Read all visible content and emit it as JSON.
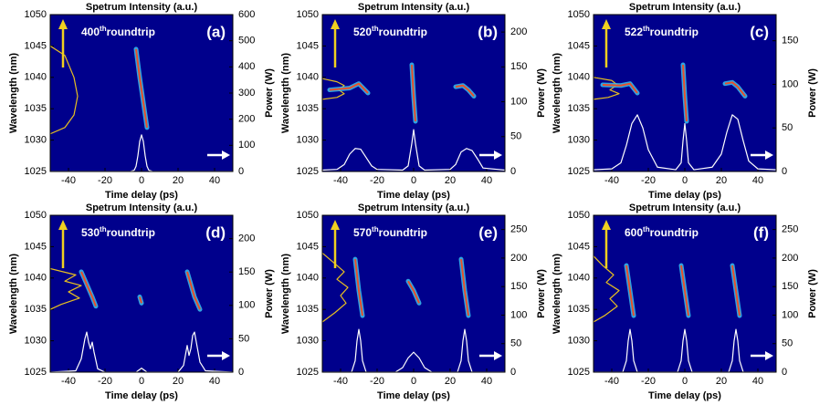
{
  "chart_data": [
    {
      "type": "line",
      "title": "Spetrum Intensity (a.u.)",
      "x_label": "Time delay (ps)",
      "y_label": "Wavelength (nm)",
      "y2_label": "Power (W)",
      "panel_label": "(a)",
      "roundtrip_number": "400",
      "roundtrip_suffix": "th",
      "roundtrip_word": "roundtrip",
      "background": "#00008c",
      "glow": "#38c0f0",
      "xlim": [
        -50,
        50
      ],
      "xticks": [
        -40,
        -20,
        0,
        20,
        40
      ],
      "ylim": [
        1025,
        1050
      ],
      "yticks": [
        1025,
        1030,
        1035,
        1040,
        1045,
        1050
      ],
      "y2lim": [
        0,
        600
      ],
      "y2ticks": [
        0,
        100,
        200,
        300,
        400,
        500,
        600
      ],
      "series": [
        {
          "color": "#ffffff",
          "axis": "y2",
          "x": [
            -50,
            -6,
            -4,
            -3,
            -2,
            -1,
            0,
            1,
            2,
            3,
            4,
            6,
            50
          ],
          "values": [
            0,
            0,
            5,
            20,
            60,
            115,
            140,
            115,
            60,
            20,
            5,
            0,
            0
          ]
        },
        {
          "color": "#e8c020",
          "x": [
            -50,
            -42,
            -37,
            -35,
            -37,
            -42,
            -50
          ],
          "values": [
            1045,
            1043.5,
            1040,
            1037,
            1034,
            1032,
            1031
          ]
        },
        {
          "color": "#e8502a",
          "glow": true,
          "x": [
            -3,
            -1,
            1,
            3
          ],
          "values": [
            1044.5,
            1040,
            1036,
            1032
          ]
        }
      ]
    },
    {
      "type": "line",
      "title": "Spetrum Intensity (a.u.)",
      "x_label": "Time delay (ps)",
      "y_label": "Wavelength (nm)",
      "y2_label": "Power (W)",
      "panel_label": "(b)",
      "roundtrip_number": "520",
      "roundtrip_suffix": "th",
      "roundtrip_word": "roundtrip",
      "background": "#00008c",
      "glow": "#38c0f0",
      "xlim": [
        -50,
        50
      ],
      "xticks": [
        -40,
        -20,
        0,
        20,
        40
      ],
      "ylim": [
        1025,
        1050
      ],
      "yticks": [
        1025,
        1030,
        1035,
        1040,
        1045,
        1050
      ],
      "y2lim": [
        0,
        225
      ],
      "y2ticks": [
        0,
        50,
        100,
        150,
        200
      ],
      "series": [
        {
          "color": "#ffffff",
          "axis": "y2",
          "x": [
            -50,
            -42,
            -38,
            -35,
            -32,
            -29,
            -26,
            -23,
            -20,
            -6,
            -3,
            -1,
            0,
            1,
            3,
            6,
            20,
            23,
            26,
            29,
            32,
            35,
            38,
            50
          ],
          "values": [
            2,
            3,
            10,
            25,
            33,
            32,
            20,
            8,
            3,
            2,
            8,
            40,
            60,
            40,
            8,
            2,
            3,
            10,
            28,
            33,
            30,
            18,
            5,
            2
          ]
        },
        {
          "color": "#e8c020",
          "x": [
            -50,
            -42,
            -38,
            -41,
            -38,
            -42,
            -50
          ],
          "values": [
            1039.8,
            1039.3,
            1038.7,
            1038,
            1037.4,
            1036.8,
            1036.5
          ]
        },
        {
          "color": "#e8502a",
          "glow": true,
          "x": [
            -46,
            -35,
            -30,
            -25
          ],
          "values": [
            1038,
            1038.3,
            1039,
            1037.5
          ]
        },
        {
          "color": "#e8502a",
          "glow": true,
          "x": [
            -1,
            0,
            1
          ],
          "values": [
            1042,
            1037,
            1033
          ]
        },
        {
          "color": "#e8502a",
          "glow": true,
          "x": [
            23,
            27,
            30,
            33
          ],
          "values": [
            1038.5,
            1038.7,
            1038,
            1037
          ]
        }
      ]
    },
    {
      "type": "line",
      "title": "Spetrum Intensity (a.u.)",
      "x_label": "Time delay (ps)",
      "y_label": "Wavelength (nm)",
      "y2_label": "Power (W)",
      "panel_label": "(c)",
      "roundtrip_number": "522",
      "roundtrip_suffix": "th",
      "roundtrip_word": "roundtrip",
      "background": "#00008c",
      "glow": "#38c0f0",
      "xlim": [
        -50,
        50
      ],
      "xticks": [
        -40,
        -20,
        0,
        20,
        40
      ],
      "ylim": [
        1025,
        1050
      ],
      "yticks": [
        1025,
        1030,
        1035,
        1040,
        1045,
        1050
      ],
      "y2lim": [
        0,
        180
      ],
      "y2ticks": [
        0,
        50,
        100,
        150
      ],
      "series": [
        {
          "color": "#ffffff",
          "axis": "y2",
          "x": [
            -50,
            -40,
            -35,
            -32,
            -29,
            -26,
            -23,
            -20,
            -15,
            -5,
            -2,
            -1,
            0,
            1,
            2,
            5,
            15,
            20,
            23,
            26,
            29,
            32,
            35,
            40,
            50
          ],
          "values": [
            2,
            3,
            10,
            30,
            55,
            65,
            50,
            25,
            5,
            2,
            10,
            35,
            55,
            35,
            10,
            2,
            5,
            20,
            45,
            65,
            60,
            35,
            12,
            3,
            2
          ]
        },
        {
          "color": "#e8c020",
          "x": [
            -50,
            -40,
            -37,
            -41,
            -36,
            -42,
            -50
          ],
          "values": [
            1040,
            1039.5,
            1038.8,
            1038,
            1037.4,
            1036.8,
            1036.5
          ]
        },
        {
          "color": "#e8502a",
          "glow": true,
          "x": [
            -45,
            -35,
            -30,
            -26
          ],
          "values": [
            1038.8,
            1038.7,
            1039,
            1037.5
          ]
        },
        {
          "color": "#e8502a",
          "glow": true,
          "x": [
            -1,
            0,
            1
          ],
          "values": [
            1042,
            1037,
            1033
          ]
        },
        {
          "color": "#e8502a",
          "glow": true,
          "x": [
            22,
            26,
            29,
            33
          ],
          "values": [
            1039,
            1039.2,
            1038.5,
            1037
          ]
        }
      ]
    },
    {
      "type": "line",
      "title": "Spetrum Intensity (a.u.)",
      "x_label": "Time delay (ps)",
      "y_label": "Wavelength (nm)",
      "y2_label": "Power (W)",
      "panel_label": "(d)",
      "roundtrip_number": "530",
      "roundtrip_suffix": "th",
      "roundtrip_word": "roundtrip",
      "background": "#00008c",
      "glow": "#38c0f0",
      "xlim": [
        -50,
        50
      ],
      "xticks": [
        -40,
        -20,
        0,
        20,
        40
      ],
      "ylim": [
        1025,
        1050
      ],
      "yticks": [
        1025,
        1030,
        1035,
        1040,
        1045,
        1050
      ],
      "y2lim": [
        0,
        235
      ],
      "y2ticks": [
        0,
        50,
        100,
        150,
        200
      ],
      "series": [
        {
          "color": "#ffffff",
          "axis": "y2",
          "x": [
            -50,
            -36,
            -33,
            -31,
            -30,
            -29,
            -28,
            -27,
            -26,
            -24,
            -20,
            -3,
            0,
            3,
            20,
            23,
            25,
            26,
            27,
            28,
            29,
            30,
            32,
            35,
            50
          ],
          "values": [
            0,
            2,
            20,
            50,
            60,
            45,
            35,
            45,
            30,
            5,
            0,
            0,
            6,
            0,
            0,
            10,
            40,
            25,
            35,
            55,
            60,
            45,
            15,
            2,
            0
          ]
        },
        {
          "color": "#e8c020",
          "x": [
            -50,
            -36,
            -42,
            -33,
            -40,
            -34,
            -44,
            -50
          ],
          "values": [
            1041.5,
            1040.5,
            1039.5,
            1038.8,
            1037.8,
            1036.8,
            1035.8,
            1035
          ]
        },
        {
          "color": "#e8502a",
          "glow": true,
          "x": [
            -33,
            -30,
            -27,
            -25
          ],
          "values": [
            1041,
            1039,
            1037,
            1035.5
          ]
        },
        {
          "color": "#e8502a",
          "glow": true,
          "x": [
            -1,
            0
          ],
          "values": [
            1037,
            1036
          ]
        },
        {
          "color": "#e8502a",
          "glow": true,
          "x": [
            25,
            27,
            29,
            32
          ],
          "values": [
            1041,
            1039,
            1037,
            1035
          ]
        }
      ]
    },
    {
      "type": "line",
      "title": "Spetrum Intensity (a.u.)",
      "x_label": "Time delay (ps)",
      "y_label": "Wavelength (nm)",
      "y2_label": "Power (W)",
      "panel_label": "(e)",
      "roundtrip_number": "570",
      "roundtrip_suffix": "th",
      "roundtrip_word": "roundtrip",
      "background": "#00008c",
      "glow": "#38c0f0",
      "xlim": [
        -50,
        50
      ],
      "xticks": [
        -40,
        -20,
        0,
        20,
        40
      ],
      "ylim": [
        1025,
        1050
      ],
      "yticks": [
        1025,
        1030,
        1035,
        1040,
        1045,
        1050
      ],
      "y2lim": [
        0,
        275
      ],
      "y2ticks": [
        0,
        50,
        100,
        150,
        200,
        250
      ],
      "series": [
        {
          "color": "#ffffff",
          "axis": "y2",
          "x": [
            -50,
            -34,
            -32,
            -31,
            -30,
            -29,
            -28,
            -26,
            -10,
            -6,
            -3,
            0,
            3,
            6,
            10,
            24,
            26,
            27,
            28,
            29,
            30,
            32,
            50
          ],
          "values": [
            0,
            0,
            20,
            55,
            75,
            55,
            20,
            0,
            0,
            8,
            25,
            35,
            25,
            8,
            0,
            0,
            20,
            55,
            75,
            55,
            20,
            0,
            0
          ]
        },
        {
          "color": "#e8c020",
          "x": [
            -50,
            -44,
            -38,
            -42,
            -36,
            -40,
            -37,
            -43,
            -50
          ],
          "values": [
            1044,
            1042.5,
            1041,
            1039.8,
            1038.5,
            1037.2,
            1036,
            1034.5,
            1033
          ]
        },
        {
          "color": "#e8502a",
          "glow": true,
          "x": [
            -32,
            -30,
            -28
          ],
          "values": [
            1043,
            1038,
            1034
          ]
        },
        {
          "color": "#e8502a",
          "glow": true,
          "x": [
            -3,
            0,
            3
          ],
          "values": [
            1039.5,
            1038,
            1036
          ]
        },
        {
          "color": "#e8502a",
          "glow": true,
          "x": [
            26,
            28,
            30
          ],
          "values": [
            1043,
            1038,
            1034
          ]
        }
      ]
    },
    {
      "type": "line",
      "title": "Spetrum Intensity (a.u.)",
      "x_label": "Time delay (ps)",
      "y_label": "Wavelength (nm)",
      "y2_label": "Power (W)",
      "panel_label": "(f)",
      "roundtrip_number": "600",
      "roundtrip_suffix": "th",
      "roundtrip_word": "roundtrip",
      "background": "#00008c",
      "glow": "#38c0f0",
      "xlim": [
        -50,
        50
      ],
      "xticks": [
        -40,
        -20,
        0,
        20,
        40
      ],
      "ylim": [
        1025,
        1050
      ],
      "yticks": [
        1025,
        1030,
        1035,
        1040,
        1045,
        1050
      ],
      "y2lim": [
        0,
        275
      ],
      "y2ticks": [
        0,
        50,
        100,
        150,
        200,
        250
      ],
      "series": [
        {
          "color": "#ffffff",
          "axis": "y2",
          "x": [
            -50,
            -34,
            -32,
            -31,
            -30,
            -29,
            -28,
            -26,
            -4,
            -2,
            -1,
            0,
            1,
            2,
            4,
            24,
            26,
            27,
            28,
            29,
            30,
            32,
            50
          ],
          "values": [
            0,
            0,
            20,
            55,
            75,
            55,
            20,
            0,
            0,
            20,
            55,
            75,
            55,
            20,
            0,
            0,
            20,
            55,
            75,
            55,
            20,
            0,
            0
          ]
        },
        {
          "color": "#e8c020",
          "x": [
            -50,
            -45,
            -39,
            -43,
            -36,
            -41,
            -37,
            -44,
            -50
          ],
          "values": [
            1043.5,
            1042,
            1040.5,
            1039.3,
            1038,
            1036.7,
            1035.5,
            1034,
            1033
          ]
        },
        {
          "color": "#e8502a",
          "glow": true,
          "x": [
            -32,
            -30,
            -28
          ],
          "values": [
            1042,
            1038,
            1034
          ]
        },
        {
          "color": "#e8502a",
          "glow": true,
          "x": [
            -2,
            0,
            2
          ],
          "values": [
            1042,
            1038,
            1034
          ]
        },
        {
          "color": "#e8502a",
          "glow": true,
          "x": [
            26,
            28,
            30
          ],
          "values": [
            1042,
            1038,
            1034
          ]
        }
      ]
    }
  ]
}
